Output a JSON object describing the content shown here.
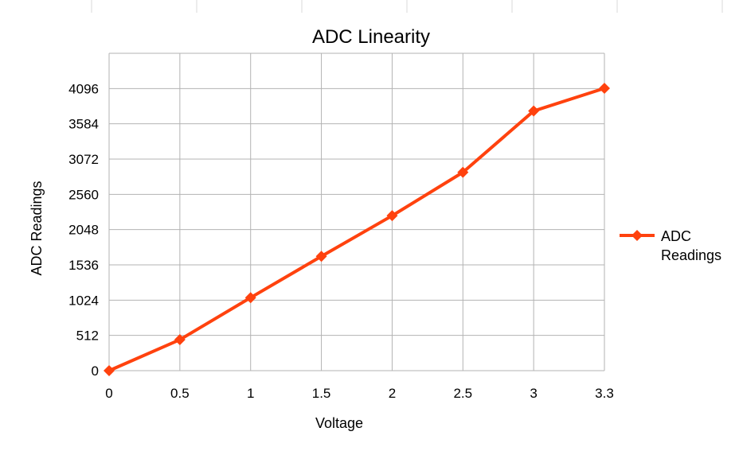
{
  "chart_data": {
    "type": "line",
    "title": "ADC Linearity",
    "xlabel": "Voltage",
    "ylabel": "ADC Readings",
    "categories": [
      "0",
      "0.5",
      "1",
      "1.5",
      "2",
      "2.5",
      "3",
      "3.3"
    ],
    "yticks": [
      "0",
      "512",
      "1024",
      "1536",
      "2048",
      "2560",
      "3072",
      "3584",
      "4096"
    ],
    "ylim": [
      0,
      4608
    ],
    "grid": true,
    "legend_position": "right",
    "series": [
      {
        "name_lines": [
          "ADC",
          "Readings"
        ],
        "color": "#ff420e",
        "marker": "diamond",
        "values": [
          0,
          450,
          1060,
          1660,
          2250,
          2880,
          3770,
          4100
        ]
      }
    ]
  }
}
